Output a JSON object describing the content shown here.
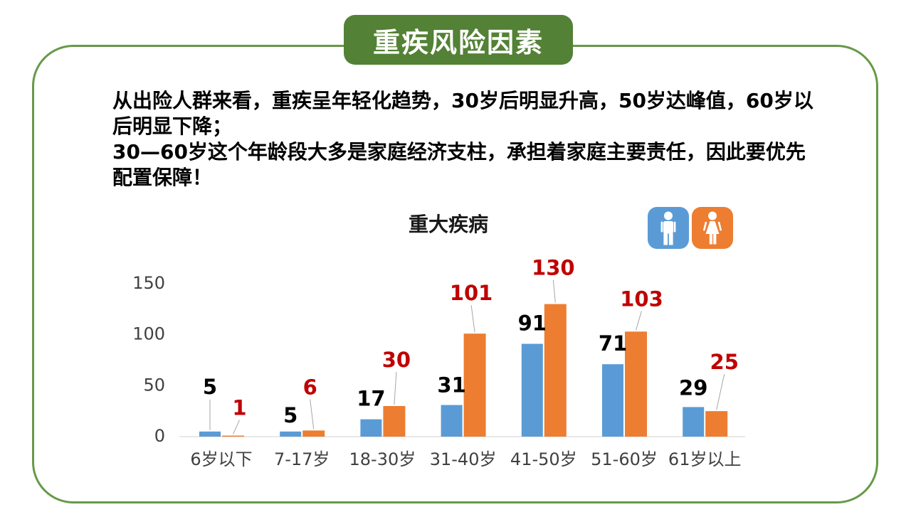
{
  "banner": {
    "title": "重疾风险因素",
    "bg_color": "#538135"
  },
  "frame": {
    "border_color": "#669A47"
  },
  "body_text": {
    "lines": [
      "从出险人群来看，重疾呈年轻化趋势，30岁后明显升高，50岁达峰值，60岁以",
      "后明显下降；",
      "30—60岁这个年龄段大多是家庭经济支柱，承担着家庭主要责任，因此要优先",
      "配置保障！"
    ]
  },
  "chart_data": {
    "type": "bar",
    "title": "重大疾病",
    "categories": [
      "6岁以下",
      "7-17岁",
      "18-30岁",
      "31-40岁",
      "41-50岁",
      "51-60岁",
      "61岁以上"
    ],
    "series": [
      {
        "name": "male",
        "color": "#5B9BD5",
        "label_color": "#000000",
        "values": [
          5,
          5,
          17,
          31,
          91,
          71,
          29
        ]
      },
      {
        "name": "female",
        "color": "#ED7D31",
        "label_color": "#C00000",
        "values": [
          1,
          6,
          30,
          101,
          130,
          103,
          25
        ]
      }
    ],
    "ylim": [
      0,
      150
    ],
    "yticks": [
      0,
      50,
      100,
      150
    ],
    "grid": false,
    "legend_position": "top-right",
    "axis_color": "#D9D9D9",
    "leader_color": "#A6A6A6",
    "tick_color": "#404040",
    "label_layout": {
      "blue_raise": [
        61,
        21,
        27,
        26,
        27,
        27,
        25
      ],
      "blue_leader": [
        true,
        false,
        false,
        false,
        false,
        false,
        false
      ],
      "orange_raise": [
        37,
        59,
        63,
        55,
        49,
        44,
        67
      ],
      "orange_dx": [
        9,
        -5,
        3,
        -5,
        -3,
        8,
        11
      ]
    }
  },
  "legend": {
    "male_color": "#5B9BD5",
    "female_color": "#ED7D31"
  }
}
